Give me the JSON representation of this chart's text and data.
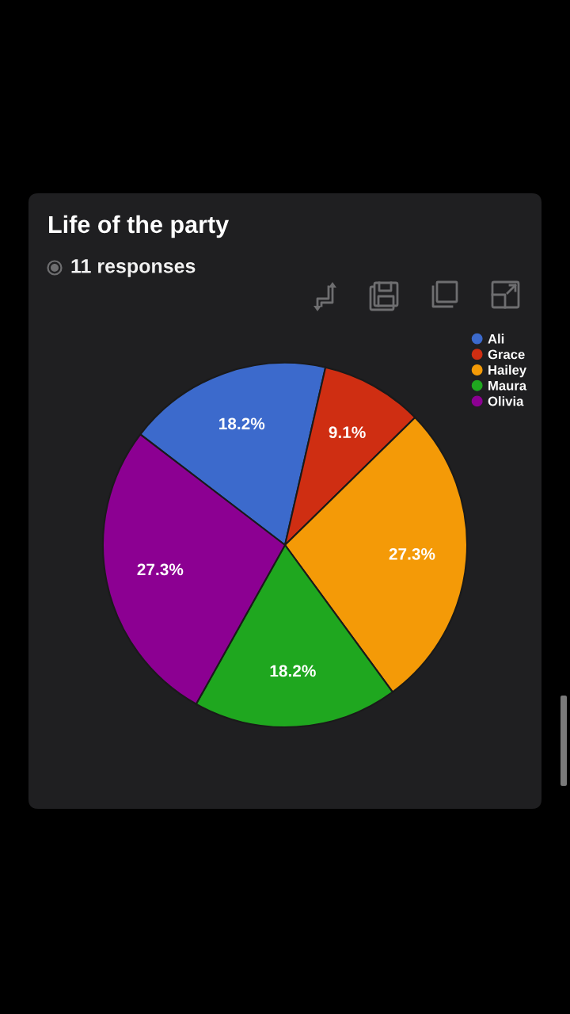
{
  "chart_data": {
    "type": "pie",
    "title": "Life of the party",
    "subtitle": "11 responses",
    "categories": [
      "Ali",
      "Grace",
      "Hailey",
      "Maura",
      "Olivia"
    ],
    "values": [
      18.2,
      9.1,
      27.3,
      18.2,
      27.3
    ],
    "colors": [
      "#3c6acc",
      "#cf2e12",
      "#f49a07",
      "#1fa71f",
      "#8c0092"
    ],
    "value_labels": [
      "18.2%",
      "9.1%",
      "27.3%",
      "18.2%",
      "27.3%"
    ],
    "legend": "top right"
  }
}
